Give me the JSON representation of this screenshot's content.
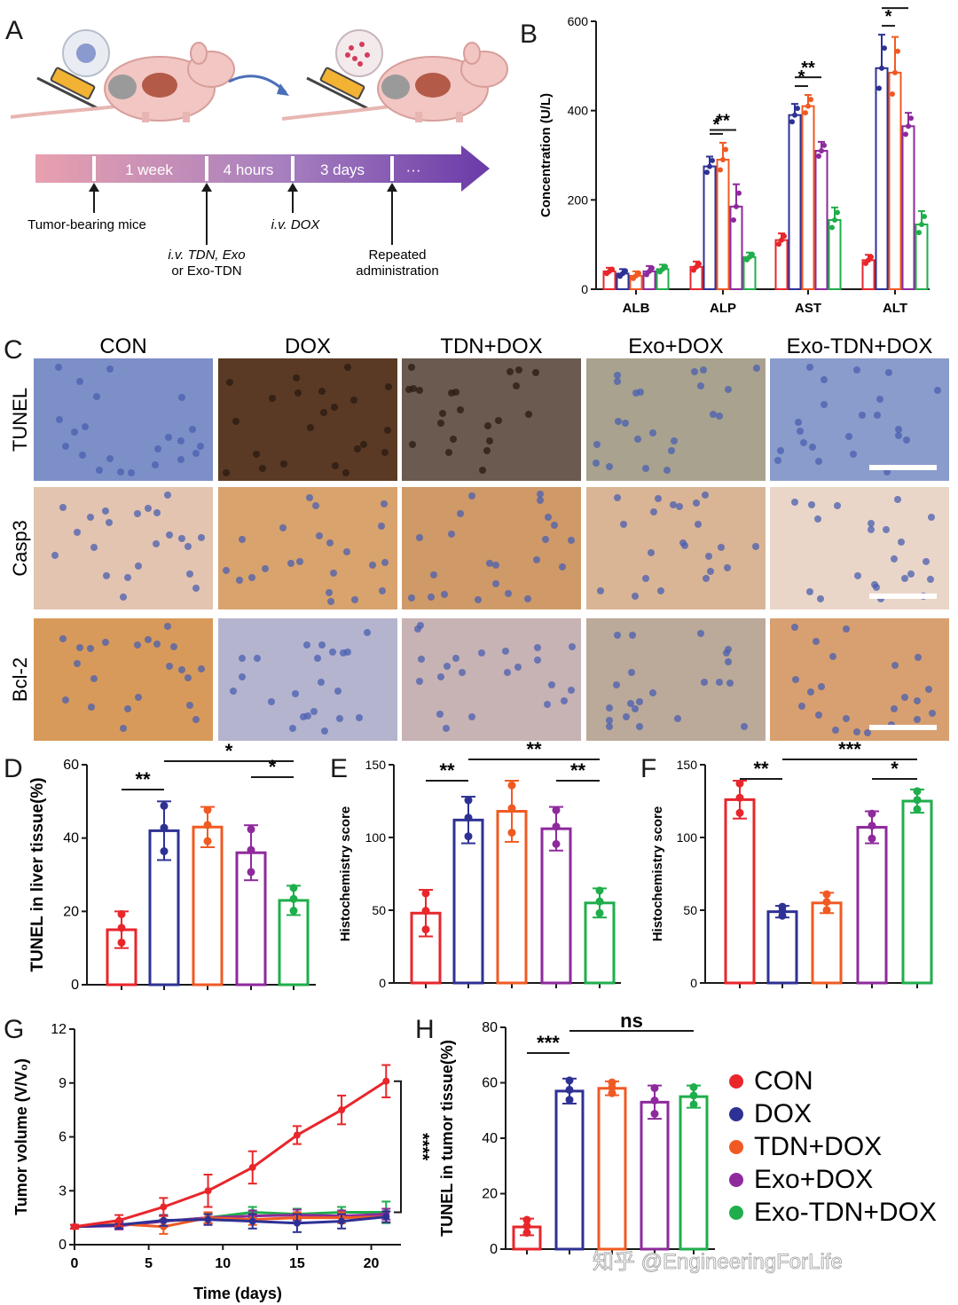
{
  "panels": {
    "A": "A",
    "B": "B",
    "C": "C",
    "D": "D",
    "E": "E",
    "F": "F",
    "G": "G",
    "H": "H"
  },
  "colors": {
    "CON": "#e8262b",
    "DOX": "#2e3194",
    "TDN+DOX": "#f05a22",
    "Exo+DOX": "#8e2a9c",
    "Exo-TDN+DOX": "#1fae4b"
  },
  "panel_a": {
    "timeline_labels": [
      "1 week",
      "4 hours",
      "3 days",
      "···"
    ],
    "events": [
      {
        "lines": [
          "Tumor-bearing mice"
        ]
      },
      {
        "lines": [
          "i.v. TDN, Exo",
          "or Exo-TDN"
        ]
      },
      {
        "lines": [
          "i.v. DOX"
        ]
      },
      {
        "lines": [
          "Repeated",
          "administration"
        ]
      }
    ]
  },
  "panel_c": {
    "columns": [
      "CON",
      "DOX",
      "TDN+DOX",
      "Exo+DOX",
      "Exo-TDN+DOX"
    ],
    "rows": [
      "TUNEL",
      "Casp3",
      "Bcl-2"
    ],
    "tiles": [
      [
        "#7d8fc7",
        "#5a3a24",
        "#6a5a50",
        "#a8a28e",
        "#8a9ccb"
      ],
      [
        "#e3c4b0",
        "#d9a36e",
        "#cf9a68",
        "#d9b595",
        "#ead6c8"
      ],
      [
        "#d89a5a",
        "#b4b4cf",
        "#c7b2b4",
        "#bba99a",
        "#d8a070"
      ]
    ]
  },
  "legend": {
    "items": [
      "CON",
      "DOX",
      "TDN+DOX",
      "Exo+DOX",
      "Exo-TDN+DOX"
    ]
  },
  "watermark": "知乎 @EngineeringForLife",
  "chart_data": [
    {
      "id": "B",
      "type": "bar",
      "ylabel": "Concentration (U/L)",
      "ylim": [
        0,
        600
      ],
      "yticks": [
        0,
        200,
        400,
        600
      ],
      "categories": [
        "ALB",
        "ALP",
        "AST",
        "ALT"
      ],
      "series": [
        {
          "name": "CON",
          "values": [
            40,
            50,
            110,
            65
          ],
          "errors": [
            8,
            12,
            15,
            12
          ]
        },
        {
          "name": "DOX",
          "values": [
            35,
            275,
            390,
            495
          ],
          "errors": [
            10,
            22,
            25,
            75
          ]
        },
        {
          "name": "TDN+DOX",
          "values": [
            30,
            290,
            410,
            485
          ],
          "errors": [
            10,
            38,
            25,
            80
          ]
        },
        {
          "name": "Exo+DOX",
          "values": [
            40,
            185,
            310,
            365
          ],
          "errors": [
            12,
            50,
            20,
            30
          ]
        },
        {
          "name": "Exo-TDN+DOX",
          "values": [
            45,
            72,
            155,
            145
          ],
          "errors": [
            10,
            10,
            28,
            30
          ]
        }
      ],
      "sig": [
        {
          "cat": 1,
          "from": 1,
          "to": 3,
          "label": "**"
        },
        {
          "cat": 1,
          "from": 1,
          "to": 2,
          "label": "*"
        },
        {
          "cat": 2,
          "from": 1,
          "to": 3,
          "label": "**"
        },
        {
          "cat": 2,
          "from": 1,
          "to": 2,
          "label": "*"
        },
        {
          "cat": 3,
          "from": 1,
          "to": 3,
          "label": "**"
        },
        {
          "cat": 3,
          "from": 1,
          "to": 2,
          "label": "*"
        }
      ]
    },
    {
      "id": "D",
      "type": "bar",
      "ylabel": "TUNEL in liver tissue(%)",
      "ylim": [
        0,
        60
      ],
      "yticks": [
        0,
        20,
        40,
        60
      ],
      "series": [
        {
          "name": "CON",
          "value": 15,
          "error": 5
        },
        {
          "name": "DOX",
          "value": 42,
          "error": 8
        },
        {
          "name": "TDN+DOX",
          "value": 43,
          "error": 5.5
        },
        {
          "name": "Exo+DOX",
          "value": 36,
          "error": 7.5
        },
        {
          "name": "Exo-TDN+DOX",
          "value": 23,
          "error": 4
        }
      ],
      "sig": [
        {
          "from": 0,
          "to": 1,
          "label": "**"
        },
        {
          "from": 1,
          "to": 4,
          "label": "*"
        },
        {
          "from": 3,
          "to": 4,
          "label": "*"
        }
      ]
    },
    {
      "id": "E",
      "type": "bar",
      "ylabel": "Histochemistry score",
      "ylim": [
        0,
        150
      ],
      "yticks": [
        0,
        50,
        100,
        150
      ],
      "series": [
        {
          "name": "CON",
          "value": 48,
          "error": 16
        },
        {
          "name": "DOX",
          "value": 112,
          "error": 16
        },
        {
          "name": "TDN+DOX",
          "value": 118,
          "error": 21
        },
        {
          "name": "Exo+DOX",
          "value": 106,
          "error": 15
        },
        {
          "name": "Exo-TDN+DOX",
          "value": 55,
          "error": 10
        }
      ],
      "sig": [
        {
          "from": 0,
          "to": 1,
          "label": "**"
        },
        {
          "from": 1,
          "to": 4,
          "label": "**"
        },
        {
          "from": 3,
          "to": 4,
          "label": "**"
        }
      ]
    },
    {
      "id": "F",
      "type": "bar",
      "ylabel": "Histochemistry score",
      "ylim": [
        0,
        150
      ],
      "yticks": [
        0,
        50,
        100,
        150
      ],
      "series": [
        {
          "name": "CON",
          "value": 126,
          "error": 13
        },
        {
          "name": "DOX",
          "value": 49,
          "error": 4
        },
        {
          "name": "TDN+DOX",
          "value": 55,
          "error": 7
        },
        {
          "name": "Exo+DOX",
          "value": 107,
          "error": 11
        },
        {
          "name": "Exo-TDN+DOX",
          "value": 125,
          "error": 8
        }
      ],
      "sig": [
        {
          "from": 0,
          "to": 1,
          "label": "**"
        },
        {
          "from": 1,
          "to": 4,
          "label": "***"
        },
        {
          "from": 3,
          "to": 4,
          "label": "*"
        }
      ]
    },
    {
      "id": "G",
      "type": "line",
      "xlabel": "Time (days)",
      "ylabel": "Tumor volume (V/V₀)",
      "xlim": [
        0,
        22
      ],
      "ylim": [
        0,
        12
      ],
      "xticks": [
        0,
        5,
        10,
        15,
        20
      ],
      "yticks": [
        0,
        3,
        6,
        9,
        12
      ],
      "x": [
        0,
        3,
        6,
        9,
        12,
        15,
        18,
        21
      ],
      "series": [
        {
          "name": "CON",
          "values": [
            1,
            1.35,
            2.1,
            3.0,
            4.3,
            6.1,
            7.5,
            9.1
          ],
          "errors": [
            0.1,
            0.3,
            0.5,
            0.9,
            0.9,
            0.5,
            0.8,
            0.9
          ]
        },
        {
          "name": "DOX",
          "values": [
            1,
            1.1,
            1.35,
            1.4,
            1.3,
            1.2,
            1.3,
            1.55
          ],
          "errors": [
            0.1,
            0.2,
            0.3,
            0.3,
            0.4,
            0.5,
            0.4,
            0.3
          ]
        },
        {
          "name": "TDN+DOX",
          "values": [
            1,
            1.15,
            1.0,
            1.5,
            1.4,
            1.5,
            1.5,
            1.55
          ],
          "errors": [
            0.1,
            0.2,
            0.4,
            0.3,
            0.3,
            0.3,
            0.3,
            0.3
          ]
        },
        {
          "name": "Exo+DOX",
          "values": [
            1,
            1.05,
            1.3,
            1.5,
            1.6,
            1.65,
            1.6,
            1.7
          ],
          "errors": [
            0.1,
            0.2,
            0.3,
            0.3,
            0.3,
            0.3,
            0.3,
            0.3
          ]
        },
        {
          "name": "Exo-TDN+DOX",
          "values": [
            1,
            1.1,
            1.3,
            1.5,
            1.8,
            1.7,
            1.8,
            1.8
          ],
          "errors": [
            0.1,
            0.2,
            0.3,
            0.3,
            0.3,
            0.3,
            0.3,
            0.6
          ]
        }
      ],
      "sig": "****"
    },
    {
      "id": "H",
      "type": "bar",
      "ylabel": "TUNEL in tumor tissue(%)",
      "ylim": [
        0,
        80
      ],
      "yticks": [
        0,
        20,
        40,
        60,
        80
      ],
      "series": [
        {
          "name": "CON",
          "value": 8,
          "error": 3
        },
        {
          "name": "DOX",
          "value": 57,
          "error": 4.5
        },
        {
          "name": "TDN+DOX",
          "value": 58,
          "error": 2.5
        },
        {
          "name": "Exo+DOX",
          "value": 53,
          "error": 6
        },
        {
          "name": "Exo-TDN+DOX",
          "value": 55,
          "error": 4
        }
      ],
      "sig": [
        {
          "from": 0,
          "to": 1,
          "label": "***"
        },
        {
          "from": 1,
          "to": 4,
          "label": "ns"
        }
      ]
    }
  ]
}
